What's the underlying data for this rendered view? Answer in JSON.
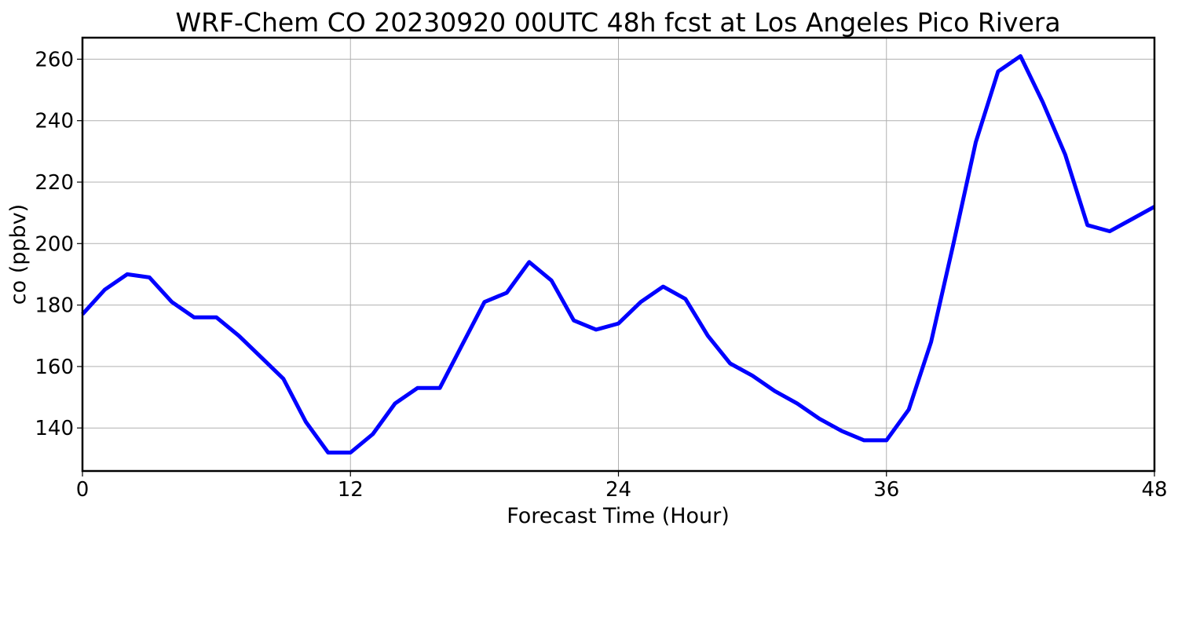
{
  "chart_data": {
    "type": "line",
    "title": "WRF-Chem CO  20230920 00UTC 48h fcst at Los Angeles Pico Rivera",
    "xlabel": "Forecast Time (Hour)",
    "ylabel": "co  (ppbv)",
    "xlim": [
      0,
      48
    ],
    "ylim": [
      126,
      267
    ],
    "xticks": [
      0,
      12,
      24,
      36,
      48
    ],
    "yticks": [
      140,
      160,
      180,
      200,
      220,
      240,
      260
    ],
    "grid": true,
    "line_color": "#0000ff",
    "series": [
      {
        "x": [
          0,
          1,
          2,
          3,
          4,
          5,
          6,
          7,
          8,
          9,
          10,
          11,
          12,
          13,
          14,
          15,
          16,
          17,
          18,
          19,
          20,
          21,
          22,
          23,
          24,
          25,
          26,
          27,
          28,
          29,
          30,
          31,
          32,
          33,
          34,
          35,
          36,
          37,
          38,
          39,
          40,
          41,
          42,
          43,
          44,
          45,
          46,
          47,
          48
        ],
        "values": [
          177,
          185,
          190,
          189,
          181,
          176,
          176,
          170,
          163,
          156,
          142,
          132,
          132,
          138,
          148,
          153,
          153,
          167,
          181,
          184,
          194,
          188,
          175,
          172,
          174,
          181,
          186,
          182,
          170,
          161,
          157,
          152,
          148,
          143,
          139,
          136,
          136,
          146,
          168,
          200,
          233,
          256,
          261,
          246,
          229,
          206,
          204,
          208,
          212
        ]
      }
    ]
  }
}
